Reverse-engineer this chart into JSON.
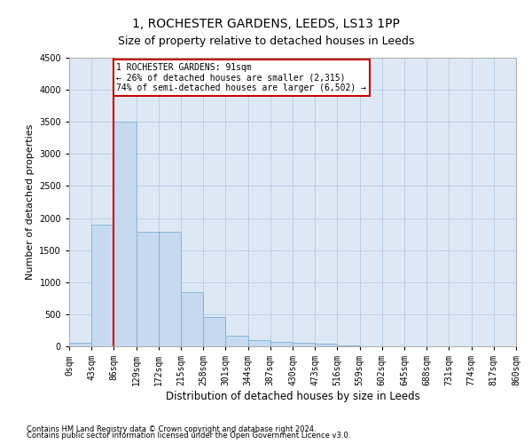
{
  "title1": "1, ROCHESTER GARDENS, LEEDS, LS13 1PP",
  "title2": "Size of property relative to detached houses in Leeds",
  "xlabel": "Distribution of detached houses by size in Leeds",
  "ylabel": "Number of detached properties",
  "bar_values": [
    50,
    1900,
    3500,
    1780,
    1780,
    850,
    460,
    160,
    100,
    75,
    50,
    35,
    10,
    5,
    5,
    5,
    4,
    3,
    2,
    2
  ],
  "bar_color": "#c6d9f0",
  "bar_edge_color": "#7bafd4",
  "x_tick_labels": [
    "0sqm",
    "43sqm",
    "86sqm",
    "129sqm",
    "172sqm",
    "215sqm",
    "258sqm",
    "301sqm",
    "344sqm",
    "387sqm",
    "430sqm",
    "473sqm",
    "516sqm",
    "559sqm",
    "602sqm",
    "645sqm",
    "688sqm",
    "731sqm",
    "774sqm",
    "817sqm",
    "860sqm"
  ],
  "ylim": [
    0,
    4500
  ],
  "yticks": [
    0,
    500,
    1000,
    1500,
    2000,
    2500,
    3000,
    3500,
    4000,
    4500
  ],
  "red_line_x": 2,
  "annotation_text": "1 ROCHESTER GARDENS: 91sqm\n← 26% of detached houses are smaller (2,315)\n74% of semi-detached houses are larger (6,502) →",
  "annotation_box_facecolor": "#ffffff",
  "annotation_box_edgecolor": "#cc0000",
  "footer1": "Contains HM Land Registry data © Crown copyright and database right 2024.",
  "footer2": "Contains public sector information licensed under the Open Government Licence v3.0.",
  "fig_facecolor": "#ffffff",
  "ax_facecolor": "#dde8f4",
  "grid_color": "#b8cfe8",
  "title1_fontsize": 10,
  "title2_fontsize": 9,
  "xlabel_fontsize": 8.5,
  "ylabel_fontsize": 8,
  "tick_fontsize": 7,
  "footer_fontsize": 6,
  "annot_fontsize": 7
}
